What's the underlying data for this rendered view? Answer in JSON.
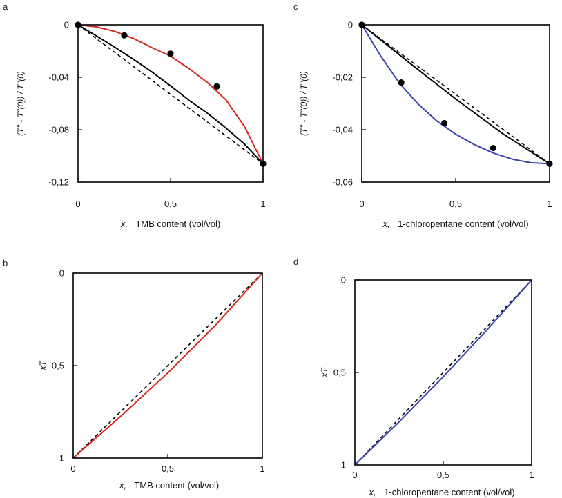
{
  "chart_data": [
    {
      "panel": "a",
      "type": "line",
      "xlabel_var": "x,",
      "xlabel": "TMB content (vol/vol)",
      "ylabel": "(T'' - T''(0)) / T''(0)",
      "xlim": [
        0,
        1
      ],
      "ylim": [
        -0.12,
        0
      ],
      "x_ticks": [
        "0",
        "0,5",
        "1"
      ],
      "y_ticks": [
        "0",
        "-0,04",
        "-0,08",
        "-0,12"
      ],
      "series": [
        {
          "style": "dashed",
          "color": "#000000",
          "x": [
            0,
            1
          ],
          "y": [
            0,
            -0.106
          ]
        },
        {
          "style": "solid",
          "color": "#000000",
          "x": [
            0,
            0.1,
            0.2,
            0.3,
            0.4,
            0.5,
            0.6,
            0.7,
            0.8,
            0.9,
            1.0
          ],
          "y": [
            0,
            -0.0085,
            -0.0172,
            -0.0263,
            -0.036,
            -0.0465,
            -0.0576,
            -0.0675,
            -0.0788,
            -0.091,
            -0.106
          ]
        },
        {
          "style": "solid",
          "color": "#d9261c",
          "x": [
            0,
            0.1,
            0.2,
            0.3,
            0.4,
            0.5,
            0.6,
            0.7,
            0.8,
            0.9,
            1.0
          ],
          "y": [
            0,
            -0.0016,
            -0.0051,
            -0.0104,
            -0.0174,
            -0.0239,
            -0.0334,
            -0.0441,
            -0.0573,
            -0.0777,
            -0.106
          ]
        },
        {
          "style": "points",
          "color": "#000000",
          "x": [
            0,
            0.25,
            0.5,
            0.75,
            1.0
          ],
          "y": [
            0,
            -0.008,
            -0.022,
            -0.047,
            -0.106
          ]
        }
      ]
    },
    {
      "panel": "c",
      "type": "line",
      "xlabel_var": "x,",
      "xlabel": "1-chloropentane content (vol/vol)",
      "ylabel": "(T'' - T''(0)) / T''(0)",
      "xlim": [
        0,
        1
      ],
      "ylim": [
        -0.06,
        0
      ],
      "x_ticks": [
        "0",
        "0,5",
        "1"
      ],
      "y_ticks": [
        "0",
        "-0,02",
        "-0,04",
        "-0,06"
      ],
      "series": [
        {
          "style": "dashed",
          "color": "#000000",
          "x": [
            0,
            1
          ],
          "y": [
            0,
            -0.053
          ]
        },
        {
          "style": "solid",
          "color": "#000000",
          "x": [
            0,
            0.25,
            0.5,
            0.75,
            1.0
          ],
          "y": [
            0,
            -0.0143,
            -0.0283,
            -0.0415,
            -0.053
          ]
        },
        {
          "style": "solid",
          "color": "#3a44b0",
          "x": [
            0,
            0.1,
            0.2,
            0.3,
            0.4,
            0.5,
            0.6,
            0.7,
            0.8,
            0.9,
            1.0
          ],
          "y": [
            0,
            -0.0118,
            -0.0222,
            -0.0302,
            -0.0367,
            -0.0417,
            -0.0457,
            -0.0489,
            -0.0512,
            -0.0526,
            -0.053
          ]
        },
        {
          "style": "points",
          "color": "#000000",
          "x": [
            0,
            0.21,
            0.44,
            0.7,
            1.0
          ],
          "y": [
            0,
            -0.022,
            -0.0375,
            -0.047,
            -0.053
          ]
        }
      ]
    },
    {
      "panel": "b",
      "type": "line",
      "xlabel_var": "x,",
      "xlabel": "TMB content (vol/vol)",
      "ylabel": "xT",
      "xlim": [
        0,
        1
      ],
      "ylim": [
        0,
        1
      ],
      "x_ticks": [
        "0",
        "0,5",
        "1"
      ],
      "y_ticks": [
        "0",
        "0,5",
        "1"
      ],
      "series": [
        {
          "style": "dashed",
          "color": "#000000",
          "x": [
            0,
            1
          ],
          "y": [
            0,
            1
          ]
        },
        {
          "style": "solid",
          "color": "#d9261c",
          "x": [
            0,
            0.25,
            0.5,
            0.75,
            1.0
          ],
          "y": [
            0,
            0.225,
            0.46,
            0.716,
            1.0
          ]
        }
      ]
    },
    {
      "panel": "d",
      "type": "line",
      "xlabel_var": "x,",
      "xlabel": "1-chloropentane content (vol/vol)",
      "ylabel": "xT",
      "xlim": [
        0,
        1
      ],
      "ylim": [
        0,
        1
      ],
      "x_ticks": [
        "0",
        "0,5",
        "1"
      ],
      "y_ticks": [
        "0",
        "0,5",
        "1"
      ],
      "series": [
        {
          "style": "dashed",
          "color": "#000000",
          "x": [
            0,
            1
          ],
          "y": [
            0,
            1
          ]
        },
        {
          "style": "solid",
          "color": "#3a44b0",
          "x": [
            0,
            0.25,
            0.5,
            0.75,
            1.0
          ],
          "y": [
            0,
            0.233,
            0.477,
            0.733,
            1.0
          ]
        }
      ]
    }
  ]
}
